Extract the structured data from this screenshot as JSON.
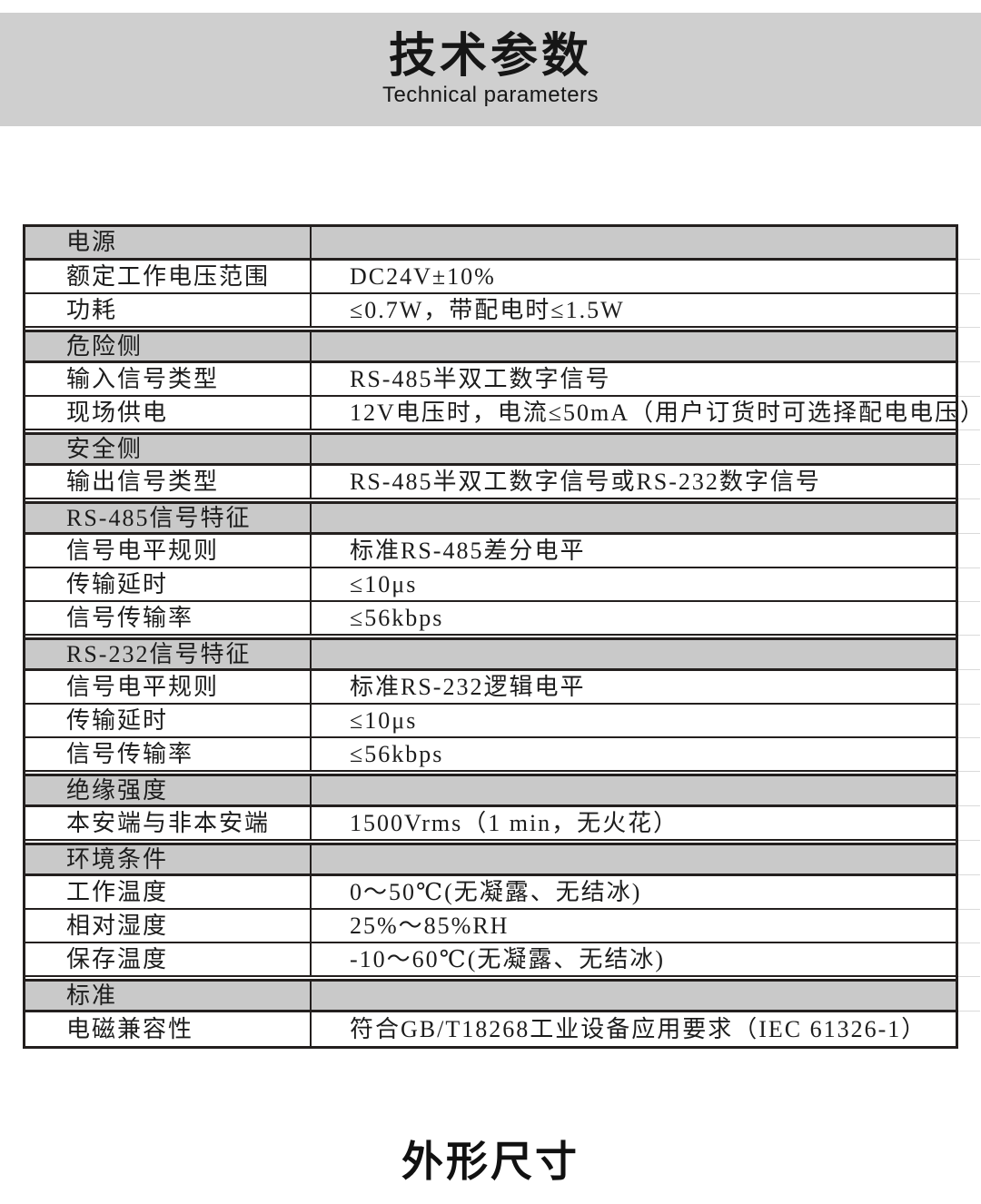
{
  "header": {
    "title": "技术参数",
    "subtitle": "Technical parameters"
  },
  "colors": {
    "band_bg": "#cfcfcf",
    "section_row_bg": "#c9c9c9",
    "table_line": "#231f1e",
    "text": "#1c1c1c"
  },
  "table": {
    "rows": [
      {
        "type": "section",
        "label": "电源",
        "value": ""
      },
      {
        "type": "data",
        "label": "额定工作电压范围",
        "value": "DC24V±10%"
      },
      {
        "type": "data",
        "label": "功耗",
        "value": "≤0.7W，带配电时≤1.5W"
      },
      {
        "type": "section",
        "label": "危险侧",
        "value": ""
      },
      {
        "type": "data",
        "label": "输入信号类型",
        "value": "RS-485半双工数字信号"
      },
      {
        "type": "data",
        "label": "现场供电",
        "value": "12V电压时，电流≤50mA（用户订货时可选择配电电压）"
      },
      {
        "type": "section",
        "label": "安全侧",
        "value": ""
      },
      {
        "type": "data",
        "label": "输出信号类型",
        "value": "RS-485半双工数字信号或RS-232数字信号"
      },
      {
        "type": "section",
        "label": "RS-485信号特征",
        "value": ""
      },
      {
        "type": "data",
        "label": "信号电平规则",
        "value": "标准RS-485差分电平"
      },
      {
        "type": "data",
        "label": "传输延时",
        "value": "≤10μs"
      },
      {
        "type": "data",
        "label": "信号传输率",
        "value": "≤56kbps"
      },
      {
        "type": "section",
        "label": "RS-232信号特征",
        "value": ""
      },
      {
        "type": "data",
        "label": "信号电平规则",
        "value": "标准RS-232逻辑电平"
      },
      {
        "type": "data",
        "label": "传输延时",
        "value": "≤10μs"
      },
      {
        "type": "data",
        "label": "信号传输率",
        "value": "≤56kbps"
      },
      {
        "type": "section",
        "label": "绝缘强度",
        "value": ""
      },
      {
        "type": "data",
        "label": "本安端与非本安端",
        "value": "1500Vrms（1 min，无火花）"
      },
      {
        "type": "section",
        "label": "环境条件",
        "value": ""
      },
      {
        "type": "data",
        "label": "工作温度",
        "value": "0～50℃(无凝露、无结冰)"
      },
      {
        "type": "data",
        "label": "相对湿度",
        "value": "25%～85%RH"
      },
      {
        "type": "data",
        "label": "保存温度",
        "value": "-10～60℃(无凝露、无结冰)"
      },
      {
        "type": "section",
        "label": "标准",
        "value": ""
      },
      {
        "type": "data",
        "label": "电磁兼容性",
        "value": "符合GB/T18268工业设备应用要求（IEC 61326-1）"
      }
    ]
  },
  "footer": {
    "title": "外形尺寸"
  }
}
